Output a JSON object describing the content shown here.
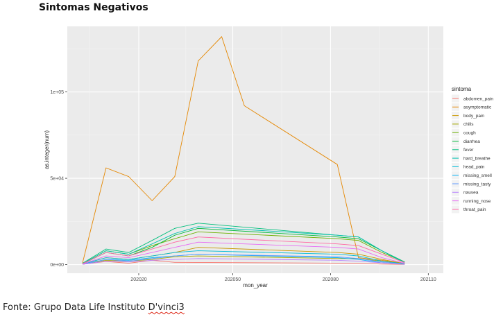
{
  "title": "Sintomas Negativos",
  "source": {
    "prefix": "Fonte: Grupo Data Life Instituto ",
    "name": "D'vinci3"
  },
  "colors": {
    "panel": "#ebebeb",
    "grid_major": "#ffffff",
    "grid_minor": "#f4f4f4",
    "tick_text": "#4d4d4d"
  },
  "chart_data": {
    "type": "line",
    "title": "Sintomas Negativos",
    "xlabel": "mon_year",
    "ylabel": "as.integer(num)",
    "x_ticks": [
      "202020",
      "202050",
      "202080",
      "202110"
    ],
    "y_ticks": [
      "0e+00",
      "5e+04",
      "1e+05"
    ],
    "ylim": [
      -5000,
      138000
    ],
    "grid": true,
    "legend": {
      "title": "sintoma",
      "position": "right"
    },
    "series": [
      {
        "name": "abdomen_pain",
        "color": "#F8766D",
        "x": [
          "2020-03",
          "2020-04",
          "2020-05",
          "2020-06",
          "2020-07",
          "2021-03",
          "2021-04",
          "2021-05"
        ],
        "y": [
          200,
          1800,
          800,
          2500,
          1300,
          800,
          300,
          100
        ]
      },
      {
        "name": "asymptomatic",
        "color": "#E58700",
        "x": [
          "2020-03",
          "2020-04",
          "2020-05",
          "2020-06",
          "2020-07",
          "2020-08",
          "2020-09",
          "2020-10",
          "2021-02",
          "2021-03",
          "2021-04",
          "2021-05"
        ],
        "y": [
          1000,
          56000,
          51000,
          37000,
          51000,
          118000,
          132000,
          92000,
          58000,
          4000,
          2500,
          500
        ]
      },
      {
        "name": "body_pain",
        "color": "#C99800",
        "x": [
          "2020-03",
          "2020-04",
          "2020-05",
          "2020-06",
          "2020-07",
          "2020-08",
          "2021-02",
          "2021-03",
          "2021-04",
          "2021-05"
        ],
        "y": [
          300,
          4000,
          3000,
          5000,
          7000,
          10000,
          7000,
          6000,
          3000,
          600
        ]
      },
      {
        "name": "chills",
        "color": "#A3A500",
        "x": [
          "2020-03",
          "2020-04",
          "2020-05",
          "2020-06",
          "2020-07",
          "2020-08",
          "2021-02",
          "2021-03",
          "2021-04",
          "2021-05"
        ],
        "y": [
          200,
          2500,
          2000,
          3000,
          4500,
          5000,
          3500,
          3500,
          2000,
          400
        ]
      },
      {
        "name": "cough",
        "color": "#6BB100",
        "x": [
          "2020-03",
          "2020-04",
          "2020-05",
          "2020-06",
          "2020-07",
          "2020-08",
          "2021-02",
          "2021-03",
          "2021-04",
          "2021-05"
        ],
        "y": [
          600,
          8000,
          6000,
          11000,
          15000,
          19000,
          15000,
          14000,
          7000,
          1500
        ]
      },
      {
        "name": "diarrhea",
        "color": "#00BA38",
        "x": [
          "2020-03",
          "2020-04",
          "2020-05",
          "2020-06",
          "2020-07",
          "2020-08",
          "2021-02",
          "2021-03",
          "2021-04",
          "2021-05"
        ],
        "y": [
          400,
          7000,
          5000,
          10000,
          17000,
          21000,
          16000,
          15000,
          8000,
          1500
        ]
      },
      {
        "name": "fever",
        "color": "#00BF7D",
        "x": [
          "2020-03",
          "2020-04",
          "2020-05",
          "2020-06",
          "2020-07",
          "2020-08",
          "2021-02",
          "2021-03",
          "2021-04",
          "2021-05"
        ],
        "y": [
          800,
          9000,
          7000,
          14000,
          21000,
          24000,
          17000,
          16000,
          8000,
          1500
        ]
      },
      {
        "name": "hard_breathe",
        "color": "#00C0AF",
        "x": [
          "2020-03",
          "2020-04",
          "2020-05",
          "2020-06",
          "2020-07",
          "2020-08",
          "2021-02",
          "2021-03",
          "2021-04",
          "2021-05"
        ],
        "y": [
          500,
          8000,
          6000,
          12000,
          18000,
          22000,
          17000,
          16000,
          8000,
          1000
        ]
      },
      {
        "name": "head_pain",
        "color": "#00BCD8",
        "x": [
          "2020-03",
          "2020-04",
          "2020-05",
          "2020-06",
          "2020-07",
          "2020-08",
          "2021-02",
          "2021-03",
          "2021-04",
          "2021-05"
        ],
        "y": [
          300,
          4000,
          3000,
          5000,
          7000,
          8000,
          6000,
          5000,
          2000,
          500
        ]
      },
      {
        "name": "missing_smell",
        "color": "#00B0F6",
        "x": [
          "2020-03",
          "2020-04",
          "2020-05",
          "2020-06",
          "2020-07",
          "2020-08",
          "2021-02",
          "2021-03",
          "2021-04",
          "2021-05"
        ],
        "y": [
          200,
          3000,
          2500,
          4000,
          5000,
          6000,
          4000,
          3000,
          1000,
          200
        ]
      },
      {
        "name": "missing_tasty",
        "color": "#619CFF",
        "x": [
          "2020-03",
          "2020-04",
          "2020-05",
          "2020-06",
          "2020-07",
          "2020-08",
          "2021-02",
          "2021-03",
          "2021-04",
          "2021-05"
        ],
        "y": [
          200,
          3000,
          2000,
          3500,
          5000,
          6000,
          4500,
          3500,
          1500,
          300
        ]
      },
      {
        "name": "nausea",
        "color": "#B983FF",
        "x": [
          "2020-03",
          "2020-04",
          "2020-05",
          "2020-06",
          "2020-07",
          "2020-08",
          "2021-02",
          "2021-03",
          "2021-04",
          "2021-05"
        ],
        "y": [
          150,
          2000,
          1500,
          2500,
          3000,
          3500,
          2500,
          2000,
          1000,
          200
        ]
      },
      {
        "name": "running_nose",
        "color": "#E76BF3",
        "x": [
          "2020-03",
          "2020-04",
          "2020-05",
          "2020-06",
          "2020-07",
          "2020-08",
          "2021-02",
          "2021-03",
          "2021-04",
          "2021-05"
        ],
        "y": [
          300,
          5000,
          4000,
          7000,
          10000,
          13000,
          10000,
          9000,
          4000,
          800
        ]
      },
      {
        "name": "throat_pain",
        "color": "#FF67A4",
        "x": [
          "2020-03",
          "2020-04",
          "2020-05",
          "2020-06",
          "2020-07",
          "2020-08",
          "2021-02",
          "2021-03",
          "2021-04",
          "2021-05"
        ],
        "y": [
          500,
          7000,
          5000,
          9000,
          13000,
          16000,
          12000,
          11000,
          6000,
          1200
        ]
      }
    ]
  }
}
